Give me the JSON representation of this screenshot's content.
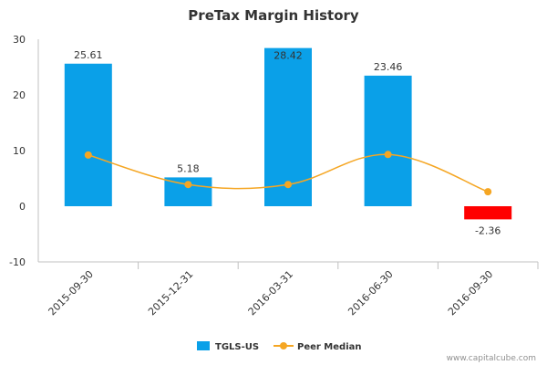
{
  "chart_data": {
    "type": "bar",
    "title": "PreTax Margin History",
    "categories": [
      "2015-09-30",
      "2015-12-31",
      "2016-03-31",
      "2016-06-30",
      "2016-09-30"
    ],
    "series": [
      {
        "name": "TGLS-US",
        "kind": "bar",
        "values": [
          25.61,
          5.18,
          28.42,
          23.46,
          -2.36
        ],
        "labels": [
          "25.61",
          "5.18",
          "28.42",
          "23.46",
          "-2.36"
        ],
        "color": "#0aa0e8",
        "negative_color": "#ff0000"
      },
      {
        "name": "Peer Median",
        "kind": "line",
        "values": [
          9.2,
          3.9,
          3.9,
          9.3,
          2.6
        ],
        "color": "#f5a623"
      }
    ],
    "y_ticks": [
      "30",
      "20",
      "10",
      "0",
      "-10"
    ],
    "ylim": [
      -10,
      30
    ],
    "grid": false,
    "legend_position": "bottom"
  },
  "credit": "www.capitalcube.com"
}
